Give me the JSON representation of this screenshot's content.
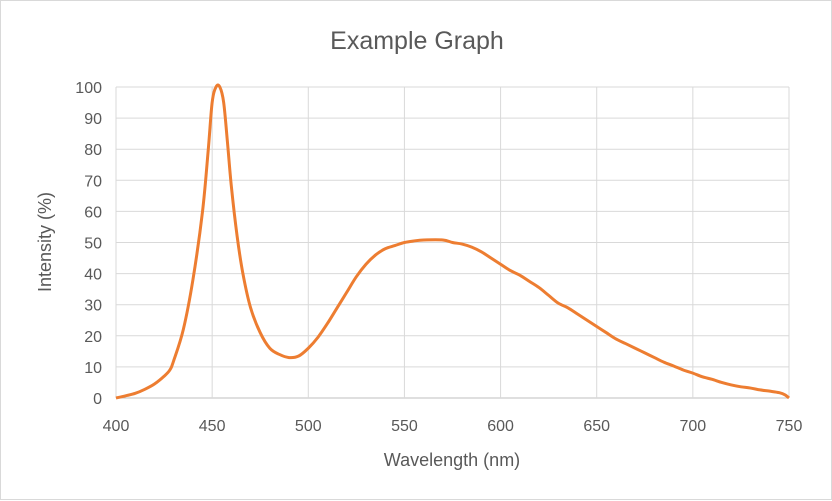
{
  "chart_data": {
    "type": "line",
    "title": "Example Graph",
    "xlabel": "Wavelength (nm)",
    "ylabel": "Intensity (%)",
    "xlim": [
      400,
      750
    ],
    "ylim": [
      0,
      100
    ],
    "xticks": [
      "400",
      "450",
      "500",
      "550",
      "600",
      "650",
      "700",
      "750"
    ],
    "yticks": [
      "0",
      "10",
      "20",
      "30",
      "40",
      "50",
      "60",
      "70",
      "80",
      "90",
      "100"
    ],
    "grid": true,
    "legend": "none",
    "series": [
      {
        "name": "Intensity",
        "color": "#ED7D31",
        "x": [
          400,
          405,
          410,
          415,
          420,
          425,
          428,
          430,
          435,
          440,
          445,
          448,
          450,
          452,
          454,
          456,
          458,
          460,
          463,
          466,
          470,
          475,
          480,
          485,
          490,
          495,
          500,
          505,
          510,
          515,
          520,
          525,
          530,
          535,
          540,
          545,
          550,
          555,
          560,
          570,
          575,
          580,
          585,
          590,
          595,
          600,
          605,
          610,
          615,
          620,
          625,
          630,
          635,
          640,
          645,
          650,
          655,
          660,
          665,
          670,
          675,
          680,
          685,
          690,
          695,
          700,
          705,
          710,
          715,
          720,
          725,
          730,
          735,
          740,
          745,
          748,
          750
        ],
        "y": [
          0,
          0.7,
          1.5,
          2.8,
          4.5,
          7,
          9,
          12,
          22,
          38,
          60,
          80,
          95,
          100,
          100,
          95,
          82,
          68,
          52,
          40,
          29,
          21,
          16,
          14,
          13,
          13.5,
          16,
          19.5,
          24,
          29,
          34,
          39,
          43,
          46,
          48,
          49,
          50,
          50.5,
          50.8,
          50.8,
          50,
          49.5,
          48.5,
          47,
          45,
          43,
          41,
          39.5,
          37.5,
          35.5,
          33,
          30.5,
          29,
          27,
          25,
          23,
          21,
          19,
          17.5,
          16,
          14.5,
          13,
          11.5,
          10.3,
          9,
          8,
          6.8,
          6,
          5,
          4.2,
          3.6,
          3.2,
          2.6,
          2.2,
          1.7,
          1,
          0
        ]
      }
    ]
  }
}
